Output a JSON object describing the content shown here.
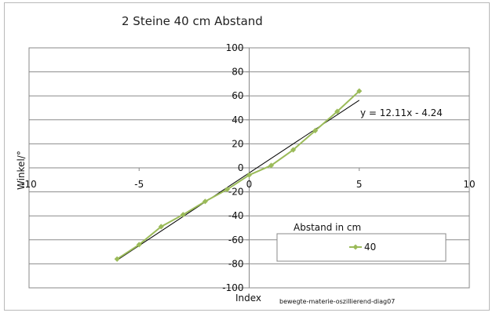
{
  "chart_data": {
    "type": "scatter",
    "title": "2 Steine 40 cm Abstand",
    "xlabel": "Index",
    "ylabel": "Winkel/°",
    "xlim": [
      -10,
      10
    ],
    "ylim": [
      -100,
      100
    ],
    "xticks": [
      -10,
      -5,
      0,
      5,
      10
    ],
    "yticks": [
      -100,
      -80,
      -60,
      -40,
      -20,
      0,
      20,
      40,
      60,
      80,
      100
    ],
    "grid": "horizontal",
    "legend_title": "Abstand in cm",
    "series": [
      {
        "name": "40",
        "color": "#9bbb59",
        "x": [
          -6,
          -5,
          -4,
          -3,
          -2,
          -1,
          0,
          1,
          2,
          3,
          4,
          5
        ],
        "y": [
          -76,
          -64,
          -49,
          -39,
          -28,
          -18,
          -6,
          2,
          15,
          31,
          47,
          64
        ]
      }
    ],
    "trendline": {
      "equation": "y = 12.11x - 4.24",
      "slope": 12.11,
      "intercept": -4.24,
      "x_range": [
        -6,
        5
      ],
      "color": "#000000"
    },
    "annotation": "bewegte-materie-oszillierend-diag07"
  }
}
